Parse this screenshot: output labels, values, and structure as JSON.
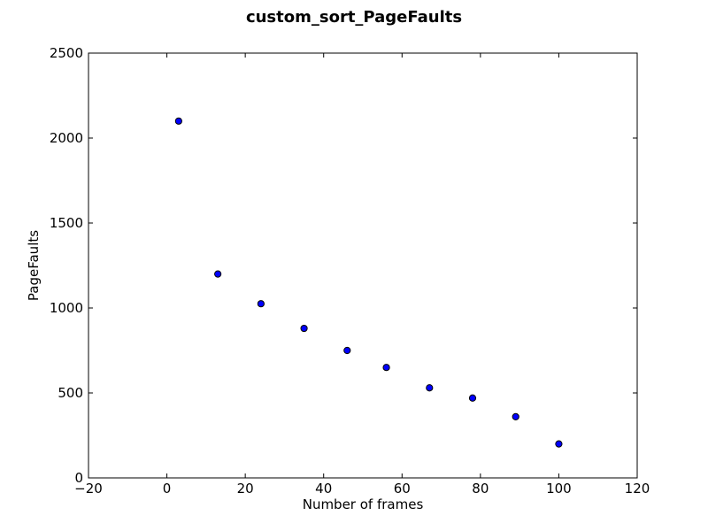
{
  "chart_data": {
    "type": "scatter",
    "title": "custom_sort_PageFaults",
    "xlabel": "Number of frames",
    "ylabel": "PageFaults",
    "xlim": [
      -20,
      120
    ],
    "ylim": [
      0,
      2500
    ],
    "xticks": [
      "−20",
      "0",
      "20",
      "40",
      "60",
      "80",
      "100",
      "120"
    ],
    "yticks": [
      "0",
      "500",
      "1000",
      "1500",
      "2000",
      "2500"
    ],
    "x": [
      3,
      13,
      24,
      35,
      46,
      56,
      67,
      78,
      89,
      100
    ],
    "y": [
      2100,
      1200,
      1025,
      880,
      750,
      650,
      530,
      470,
      360,
      200
    ],
    "grid": false,
    "legend": "none",
    "marker_color": "#0000ff"
  }
}
